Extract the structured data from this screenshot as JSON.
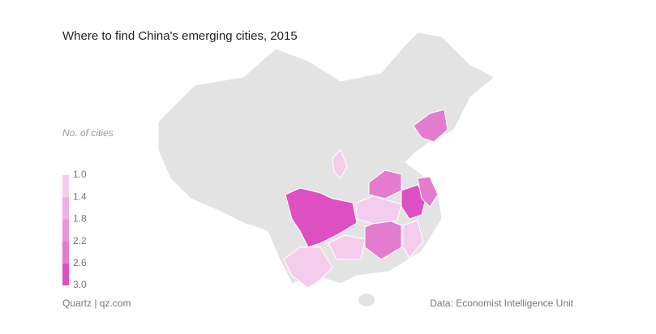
{
  "chart_data": {
    "type": "choropleth",
    "title": "Where to find China's emerging cities, 2015",
    "legend_title": "No. of cities",
    "legend_ticks": [
      {
        "value": 1,
        "label": "1.0"
      },
      1.4,
      1.8,
      2.2,
      2.6,
      {
        "value": 3,
        "label": "3.0"
      }
    ],
    "colors": [
      "#f5cdec",
      "#eeb0e2",
      "#e896d8",
      "#e37bcf",
      "#dd4fc2"
    ],
    "base_color": "#e3e3e3",
    "values": [
      3,
      3,
      2.2,
      2.2,
      2.2,
      2.2,
      1.4,
      1.4,
      1.4,
      1.4,
      1.4
    ],
    "credit": "Quartz | qz.com",
    "source": "Data: Economist Intelligence Unit"
  }
}
